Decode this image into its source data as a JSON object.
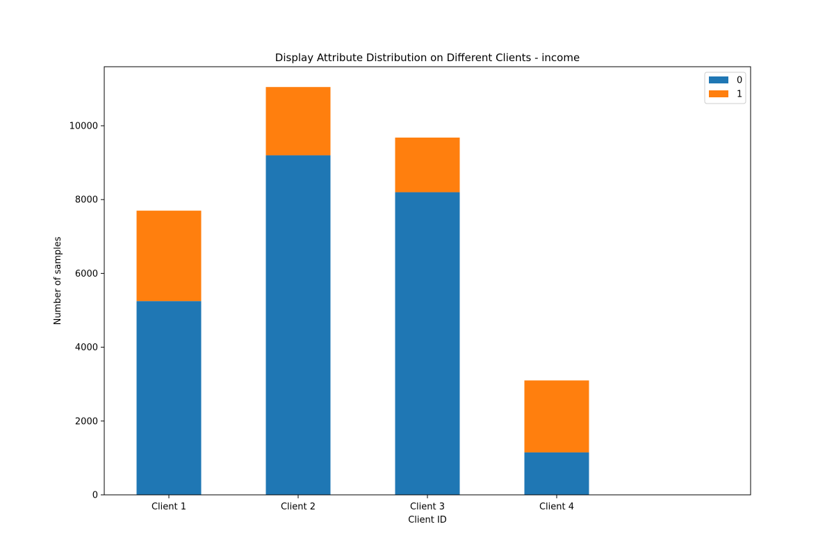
{
  "chart_data": {
    "type": "bar",
    "stacked": true,
    "title": "Display Attribute Distribution on Different Clients - income",
    "xlabel": "Client ID",
    "ylabel": "Number of samples",
    "categories": [
      "Client 1",
      "Client 2",
      "Client 3",
      "Client 4"
    ],
    "series": [
      {
        "name": "0",
        "color": "#1f77b4",
        "values": [
          5250,
          9200,
          8200,
          1150
        ]
      },
      {
        "name": "1",
        "color": "#ff7f0e",
        "values": [
          2450,
          1850,
          1480,
          1950
        ]
      }
    ],
    "ylim": [
      0,
      11600
    ],
    "yticks": [
      0,
      2000,
      4000,
      6000,
      8000,
      10000
    ],
    "grid": false,
    "legend": "top-right"
  }
}
